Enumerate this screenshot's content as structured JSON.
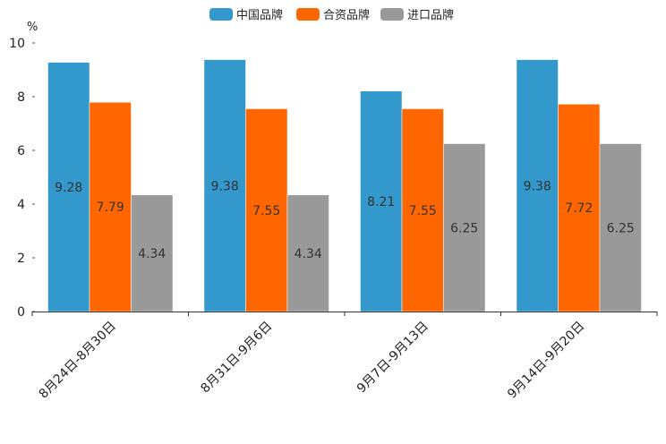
{
  "chart_data": {
    "type": "bar",
    "title": "",
    "ylabel": "%",
    "xlabel": "",
    "ylim": [
      0,
      10
    ],
    "yticks": [
      0,
      2,
      4,
      6,
      8,
      10
    ],
    "grid": false,
    "legend": "top-center",
    "categories": [
      "8月24日-8月30日",
      "8月31日-9月6日",
      "9月7日-9月13日",
      "9月14日-9月20日"
    ],
    "series": [
      {
        "name": "中国品牌",
        "color": "#3399cc",
        "values": [
          9.28,
          9.38,
          8.21,
          9.38
        ]
      },
      {
        "name": "合资品牌",
        "color": "#ff6600",
        "values": [
          7.79,
          7.55,
          7.55,
          7.72
        ]
      },
      {
        "name": "进口品牌",
        "color": "#999999",
        "values": [
          4.34,
          4.34,
          6.25,
          6.25
        ]
      }
    ]
  }
}
